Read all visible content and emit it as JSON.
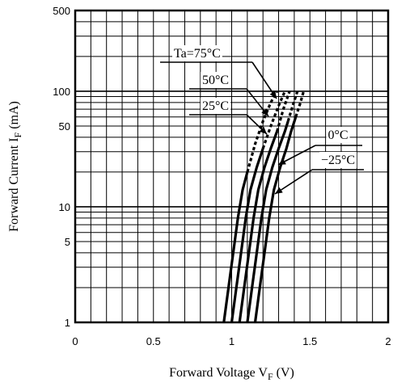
{
  "chart_data": {
    "type": "line",
    "title": "",
    "xlabel": "Forward Voltage V",
    "xlabel_sub": "F",
    "xlabel_unit": " (V)",
    "ylabel": "Forward Current I",
    "ylabel_sub": "F",
    "ylabel_unit": " (mA)",
    "xlim": [
      0,
      2
    ],
    "ylim": [
      1,
      500
    ],
    "yscale": "log",
    "grid": true,
    "x_tick_labels": [
      "0",
      "0.5",
      "1",
      "1.5",
      "2"
    ],
    "x_ticks": [
      0,
      0.5,
      1,
      1.5,
      2
    ],
    "y_tick_labels": [
      "1",
      "5",
      "10",
      "50",
      "100",
      "500"
    ],
    "y_ticks": [
      1,
      5,
      10,
      50,
      100,
      500
    ],
    "series": [
      {
        "name": "Ta=75°C",
        "solid": [
          [
            0.95,
            1
          ],
          [
            0.98,
            2
          ],
          [
            1.01,
            4
          ],
          [
            1.04,
            8
          ],
          [
            1.07,
            14
          ],
          [
            1.1,
            20
          ]
        ],
        "dashed": [
          [
            1.1,
            20
          ],
          [
            1.15,
            35
          ],
          [
            1.2,
            55
          ],
          [
            1.25,
            80
          ],
          [
            1.29,
            100
          ]
        ]
      },
      {
        "name": "50°C",
        "solid": [
          [
            1.0,
            1
          ],
          [
            1.03,
            2
          ],
          [
            1.06,
            4
          ],
          [
            1.09,
            8
          ],
          [
            1.12,
            14
          ],
          [
            1.16,
            22
          ],
          [
            1.2,
            32
          ]
        ],
        "dashed": [
          [
            1.2,
            32
          ],
          [
            1.25,
            50
          ],
          [
            1.3,
            75
          ],
          [
            1.34,
            100
          ]
        ]
      },
      {
        "name": "25°C",
        "solid": [
          [
            1.05,
            1
          ],
          [
            1.08,
            2
          ],
          [
            1.11,
            4
          ],
          [
            1.14,
            8
          ],
          [
            1.17,
            14
          ],
          [
            1.21,
            22
          ],
          [
            1.25,
            32
          ],
          [
            1.29,
            45
          ]
        ],
        "dashed": [
          [
            1.29,
            45
          ],
          [
            1.33,
            70
          ],
          [
            1.37,
            100
          ]
        ]
      },
      {
        "name": "0°C",
        "solid": [
          [
            1.1,
            1
          ],
          [
            1.13,
            2
          ],
          [
            1.16,
            4
          ],
          [
            1.19,
            8
          ],
          [
            1.22,
            14
          ],
          [
            1.26,
            22
          ],
          [
            1.3,
            32
          ],
          [
            1.34,
            45
          ],
          [
            1.36,
            55
          ]
        ],
        "dashed": [
          [
            1.36,
            55
          ],
          [
            1.39,
            75
          ],
          [
            1.42,
            100
          ]
        ]
      },
      {
        "name": "−25°C",
        "solid": [
          [
            1.15,
            1
          ],
          [
            1.18,
            2
          ],
          [
            1.21,
            4
          ],
          [
            1.24,
            8
          ],
          [
            1.27,
            14
          ],
          [
            1.31,
            22
          ],
          [
            1.35,
            32
          ],
          [
            1.38,
            45
          ],
          [
            1.41,
            60
          ]
        ],
        "dashed": [
          [
            1.41,
            60
          ],
          [
            1.44,
            80
          ],
          [
            1.46,
            100
          ]
        ]
      }
    ],
    "annotations": [
      {
        "text": "Ta=75°C",
        "series": 0
      },
      {
        "text": "50°C",
        "series": 1
      },
      {
        "text": "25°C",
        "series": 2
      },
      {
        "text": "0°C",
        "series": 3
      },
      {
        "text": "−25°C",
        "series": 4
      }
    ]
  }
}
